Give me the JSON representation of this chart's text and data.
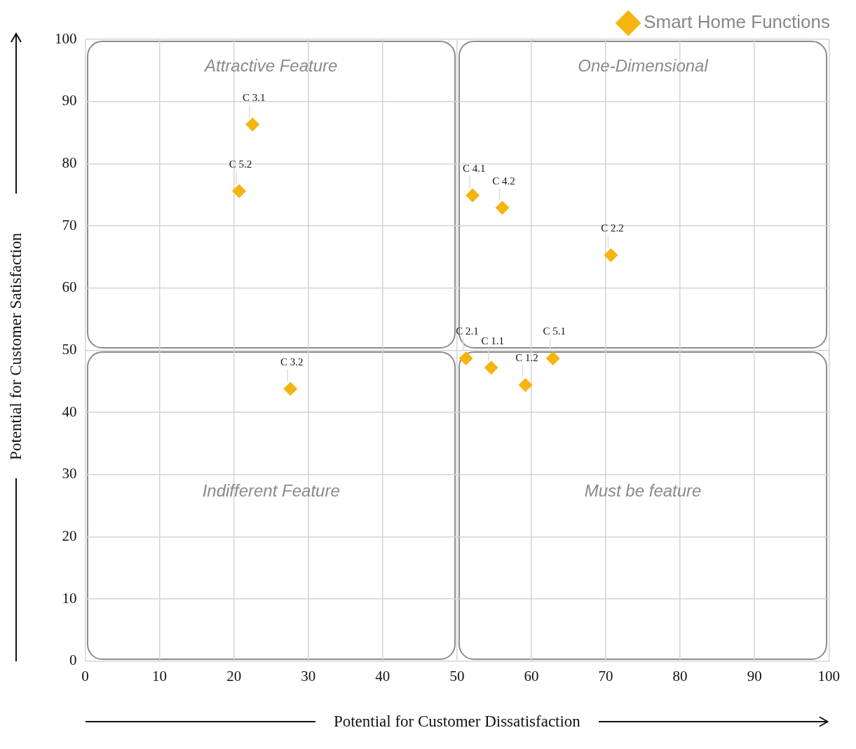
{
  "chart_data": {
    "type": "scatter",
    "xlabel": "Potential for Customer Dissatisfaction",
    "ylabel": "Potential for Customer Satisfaction",
    "xlim": [
      0,
      100
    ],
    "ylim": [
      0,
      100
    ],
    "xticks": [
      0,
      10,
      20,
      30,
      40,
      50,
      60,
      70,
      80,
      90,
      100
    ],
    "yticks": [
      0,
      10,
      20,
      30,
      40,
      50,
      60,
      70,
      80,
      90,
      100
    ],
    "grid": true,
    "legend": "top right",
    "marker": "diamond",
    "series": [
      {
        "name": "Smart Home Functions",
        "color": "#f5b40f",
        "x": [
          22.5,
          20.7,
          52.1,
          56.1,
          70.7,
          51.2,
          54.6,
          59.2,
          62.9,
          27.6
        ],
        "values": [
          86.3,
          75.6,
          74.9,
          72.9,
          65.3,
          48.7,
          47.2,
          44.4,
          48.7,
          43.8
        ]
      }
    ],
    "annotations": [
      {
        "text": "C 3.1",
        "x": 22.5,
        "y": 86.3
      },
      {
        "text": "C 5.2",
        "x": 20.7,
        "y": 75.6
      },
      {
        "text": "C 4.1",
        "x": 52.1,
        "y": 74.9
      },
      {
        "text": "C 4.2",
        "x": 56.1,
        "y": 72.9
      },
      {
        "text": "C 2.2",
        "x": 70.7,
        "y": 65.3
      },
      {
        "text": "C 2.1",
        "x": 51.2,
        "y": 48.7
      },
      {
        "text": "C 1.1",
        "x": 54.6,
        "y": 47.2
      },
      {
        "text": "C 1.2",
        "x": 59.2,
        "y": 44.4
      },
      {
        "text": "C 5.1",
        "x": 62.9,
        "y": 48.7
      },
      {
        "text": "C 3.2",
        "x": 27.6,
        "y": 43.8
      },
      "Attractive Feature",
      "One-Dimensional",
      "Indifferent Feature",
      "Must be feature"
    ]
  }
}
